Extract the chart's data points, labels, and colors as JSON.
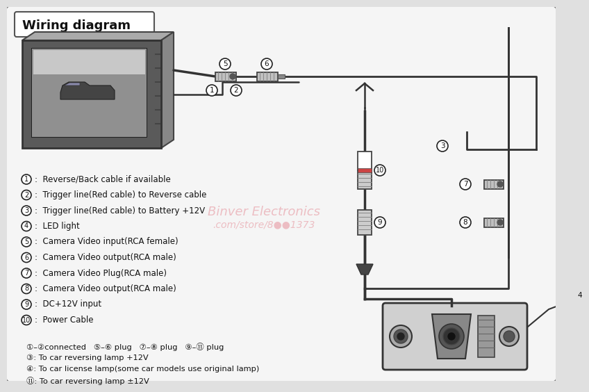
{
  "title": "Wiring diagram",
  "bg_color": "#f2f2f2",
  "labels": [
    "Reverse/Back cable if available",
    "Trigger line(Red cable) to Reverse cable",
    "Trigger line(Red cable) to Battery +12V",
    "LED light",
    "Camera Video input(RCA female)",
    "Camera Video output(RCA male)",
    "Camera Video Plug(RCA male)",
    "Camera Video output(RCA male)",
    "DC+12V input",
    "Power Cable"
  ],
  "label_numbers": [
    1,
    2,
    3,
    4,
    5,
    6,
    7,
    8,
    9,
    10
  ],
  "footer_line1": "①–②connected   ⑤–⑥ plug   ⑦–⑧ plug   ⑨–⑪ plug",
  "footer_line2": "③: To car reversing lamp +12V",
  "footer_line3": "④: To car license lamp(some car models use original lamp)",
  "footer_line4": "⑪: To car reversing lamp ±12V",
  "wm1": "Binver Electronics",
  "wm2": ".com/store/8●●1373",
  "wm_color": "#e8a0a8"
}
